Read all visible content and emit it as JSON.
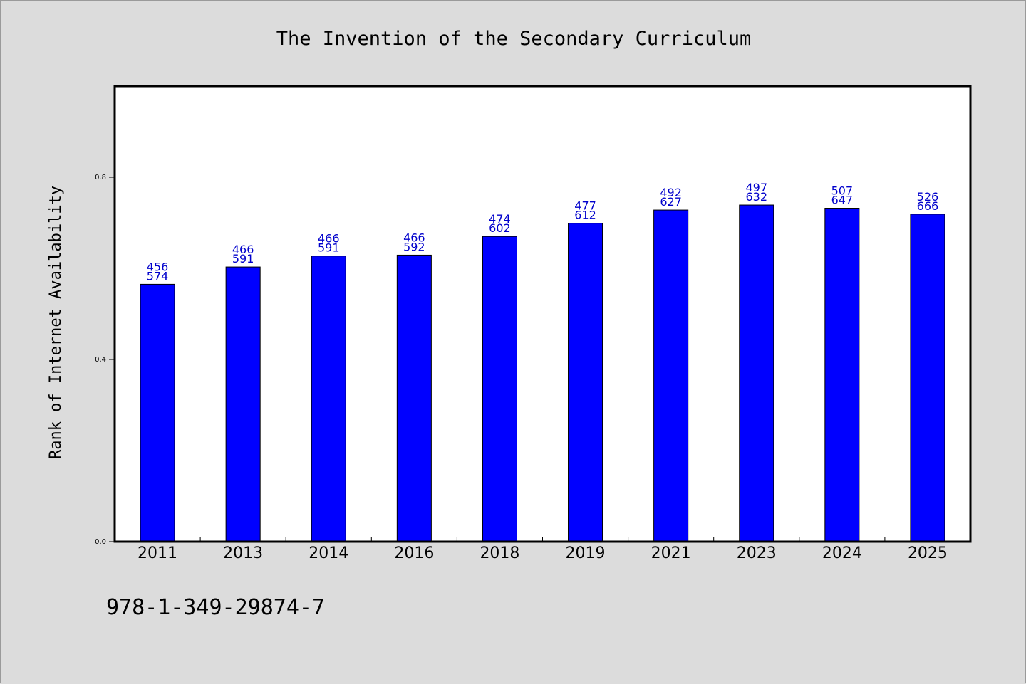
{
  "chart_data": {
    "type": "bar",
    "title": "The Invention of the Secondary Curriculum",
    "xlabel": "",
    "ylabel": "Rank of Internet Availability",
    "categories": [
      "2011",
      "2013",
      "2014",
      "2016",
      "2018",
      "2019",
      "2021",
      "2023",
      "2024",
      "2025"
    ],
    "values": [
      0.565,
      0.603,
      0.627,
      0.629,
      0.67,
      0.699,
      0.728,
      0.739,
      0.732,
      0.719
    ],
    "data_labels_top": [
      "456",
      "466",
      "466",
      "466",
      "474",
      "477",
      "492",
      "497",
      "507",
      "526"
    ],
    "data_labels_bottom": [
      "574",
      "591",
      "591",
      "592",
      "602",
      "612",
      "627",
      "632",
      "647",
      "666"
    ],
    "ylim": [
      0,
      1.0
    ],
    "yticks": [
      "0.0",
      "0.4",
      "0.8"
    ],
    "ytick_values": [
      0.0,
      0.4,
      0.8
    ],
    "bar_color": "#0000ff",
    "label_color": "#0000cc",
    "grid": false,
    "legend": "none"
  },
  "footer": {
    "isbn": "978-1-349-29874-7"
  },
  "colors": {
    "background": "#dcdcdc",
    "plot_background": "#ffffff"
  }
}
